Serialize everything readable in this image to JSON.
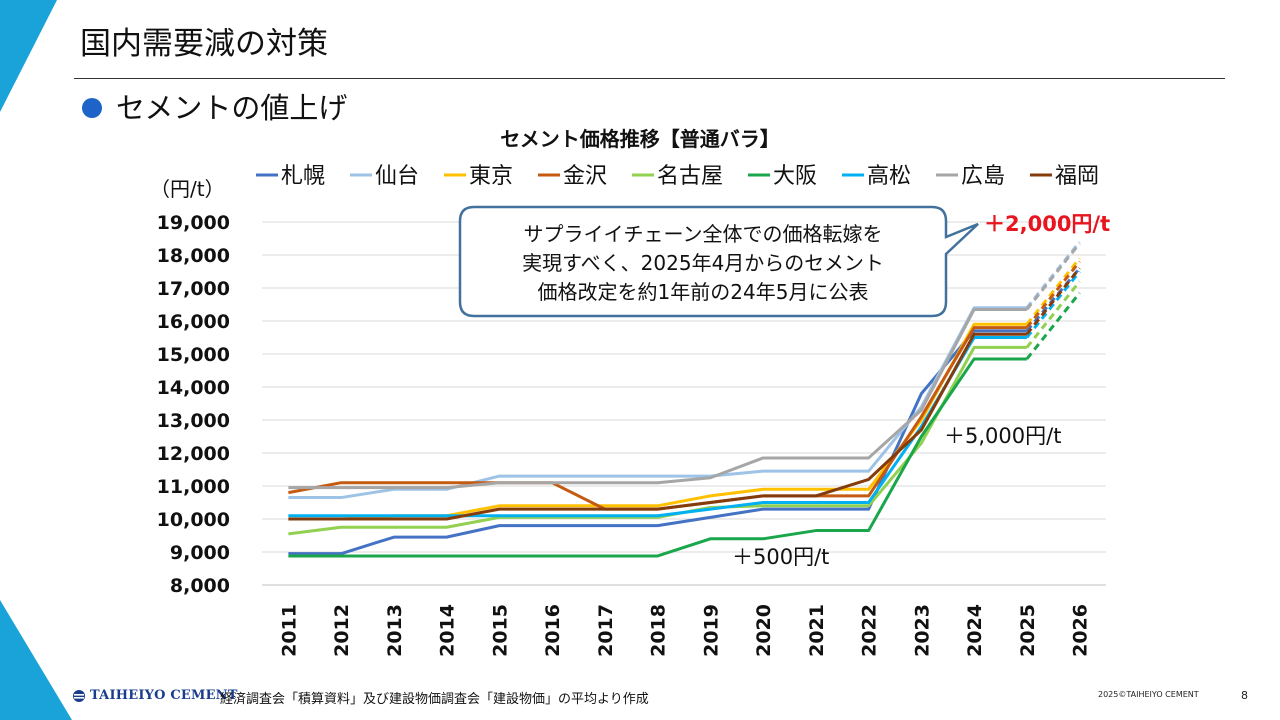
{
  "slide": {
    "title": "国内需要減の対策",
    "bullet": "セメントの値上げ",
    "page_number": "8",
    "copyright": "2025©TAIHEIYO CEMENT",
    "source_note": "経済調査会「積算資料」及び建設物価調査会「建設物価」の平均より作成",
    "logo_text": "TAIHEIYO CEMENT"
  },
  "colors": {
    "accent": "#1e64c8",
    "deco": "#1aa3d9",
    "highlight_red": "#e8141e",
    "callout_border": "#41719c"
  },
  "chart_data": {
    "type": "line",
    "title": "セメント価格推移【普通バラ】",
    "ylabel": "（円/t）",
    "ylim": [
      8000,
      19000
    ],
    "yticks": [
      "19,000",
      "18,000",
      "17,000",
      "16,000",
      "15,000",
      "14,000",
      "13,000",
      "12,000",
      "11,000",
      "10,000",
      "9,000",
      "8,000"
    ],
    "x": [
      "2011",
      "2012",
      "2013",
      "2014",
      "2015",
      "2016",
      "2017",
      "2018",
      "2019",
      "2020",
      "2021",
      "2022",
      "2023",
      "2024",
      "2025",
      "2026"
    ],
    "grid": true,
    "legend_position": "top",
    "forecast_from": "2025",
    "series": [
      {
        "name": "札幌",
        "color": "#4472c4",
        "values": [
          8950,
          8950,
          9450,
          9450,
          9800,
          9800,
          9800,
          9800,
          10050,
          10300,
          10300,
          10300,
          13800,
          15700,
          15700,
          17600
        ]
      },
      {
        "name": "仙台",
        "color": "#9dc3e6",
        "values": [
          10650,
          10650,
          10900,
          10900,
          11300,
          11300,
          11300,
          11300,
          11300,
          11450,
          11450,
          11450,
          13400,
          16400,
          16400,
          18400
        ]
      },
      {
        "name": "東京",
        "color": "#ffc000",
        "values": [
          10000,
          10000,
          10100,
          10100,
          10400,
          10400,
          10400,
          10400,
          10700,
          10900,
          10900,
          10900,
          13000,
          15900,
          15900,
          17900
        ]
      },
      {
        "name": "金沢",
        "color": "#c55a11",
        "values": [
          10800,
          11100,
          11100,
          11100,
          11100,
          11100,
          10300,
          10300,
          10500,
          10700,
          10700,
          10700,
          13100,
          15800,
          15800,
          17800
        ]
      },
      {
        "name": "名古屋",
        "color": "#92d050",
        "values": [
          9550,
          9750,
          9750,
          9750,
          10050,
          10050,
          10050,
          10050,
          10350,
          10400,
          10400,
          10400,
          12300,
          15200,
          15200,
          17200
        ]
      },
      {
        "name": "大阪",
        "color": "#1aa64a",
        "values": [
          8880,
          8880,
          8880,
          8880,
          8880,
          8880,
          8880,
          8880,
          9400,
          9400,
          9650,
          9650,
          12500,
          14850,
          14850,
          16850
        ]
      },
      {
        "name": "高松",
        "color": "#00b0f0",
        "values": [
          10100,
          10100,
          10100,
          10100,
          10100,
          10100,
          10100,
          10100,
          10300,
          10500,
          10500,
          10500,
          12800,
          15500,
          15500,
          17500
        ]
      },
      {
        "name": "広島",
        "color": "#a6a6a6",
        "values": [
          10950,
          10950,
          10950,
          10950,
          11100,
          11100,
          11100,
          11100,
          11250,
          11850,
          11850,
          11850,
          13300,
          16350,
          16350,
          18350
        ]
      },
      {
        "name": "福岡",
        "color": "#843c0c",
        "values": [
          10000,
          10000,
          10000,
          10000,
          10300,
          10300,
          10300,
          10300,
          10500,
          10700,
          10700,
          11200,
          12700,
          15600,
          15600,
          17600
        ]
      }
    ],
    "annotations": {
      "callout": [
        "サプライイチェーン全体での価格転嫁を",
        "実現すべく、2025年4月からのセメント",
        "価格改定を約1年前の24年5月に公表"
      ],
      "plus_2000": "＋2,000円/t",
      "plus_5000": "＋5,000円/t",
      "plus_500": "＋500円/t"
    }
  }
}
